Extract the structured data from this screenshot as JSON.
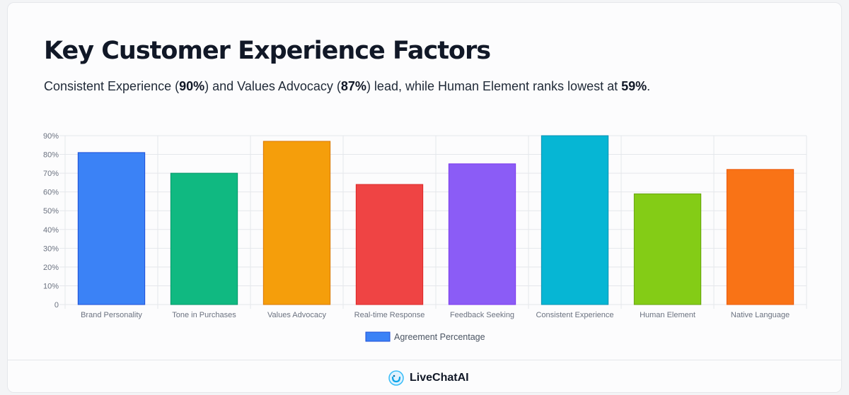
{
  "header": {
    "title": "Key Customer Experience Factors",
    "subtitle_parts": [
      {
        "text": "Consistent Experience (",
        "bold": false
      },
      {
        "text": "90%",
        "bold": true
      },
      {
        "text": ") and Values Advocacy (",
        "bold": false
      },
      {
        "text": "87%",
        "bold": true
      },
      {
        "text": ") lead, while Human Element ranks lowest at ",
        "bold": false
      },
      {
        "text": "59%",
        "bold": true
      },
      {
        "text": ".",
        "bold": false
      }
    ]
  },
  "chart_data": {
    "type": "bar",
    "title": "",
    "xlabel": "",
    "ylabel": "",
    "categories": [
      "Brand Personality",
      "Tone in Purchases",
      "Values Advocacy",
      "Real-time Response",
      "Feedback Seeking",
      "Consistent Experience",
      "Human Element",
      "Native Language"
    ],
    "series": [
      {
        "name": "Agreement Percentage",
        "values": [
          81,
          70,
          87,
          64,
          75,
          90,
          59,
          72
        ]
      }
    ],
    "bar_colors": [
      "#3b82f6",
      "#10b981",
      "#f59e0b",
      "#ef4444",
      "#8b5cf6",
      "#06b6d4",
      "#84cc16",
      "#f97316"
    ],
    "bar_border_colors": [
      "#1d4ed8",
      "#059669",
      "#d97706",
      "#dc2626",
      "#7c3aed",
      "#0891b2",
      "#65a30d",
      "#ea580c"
    ],
    "ylim": [
      0,
      90
    ],
    "yticks": [
      0,
      10,
      20,
      30,
      40,
      50,
      60,
      70,
      80,
      90
    ],
    "ytick_labels": [
      "0",
      "10%",
      "20%",
      "30%",
      "40%",
      "50%",
      "60%",
      "70%",
      "80%",
      "90%"
    ],
    "grid": true,
    "legend_placement": "bottom-center",
    "legend_color": "#3b82f6"
  },
  "footer": {
    "brand_name": "LiveChatAI",
    "logo_icon": "livechatai-logo-icon"
  }
}
